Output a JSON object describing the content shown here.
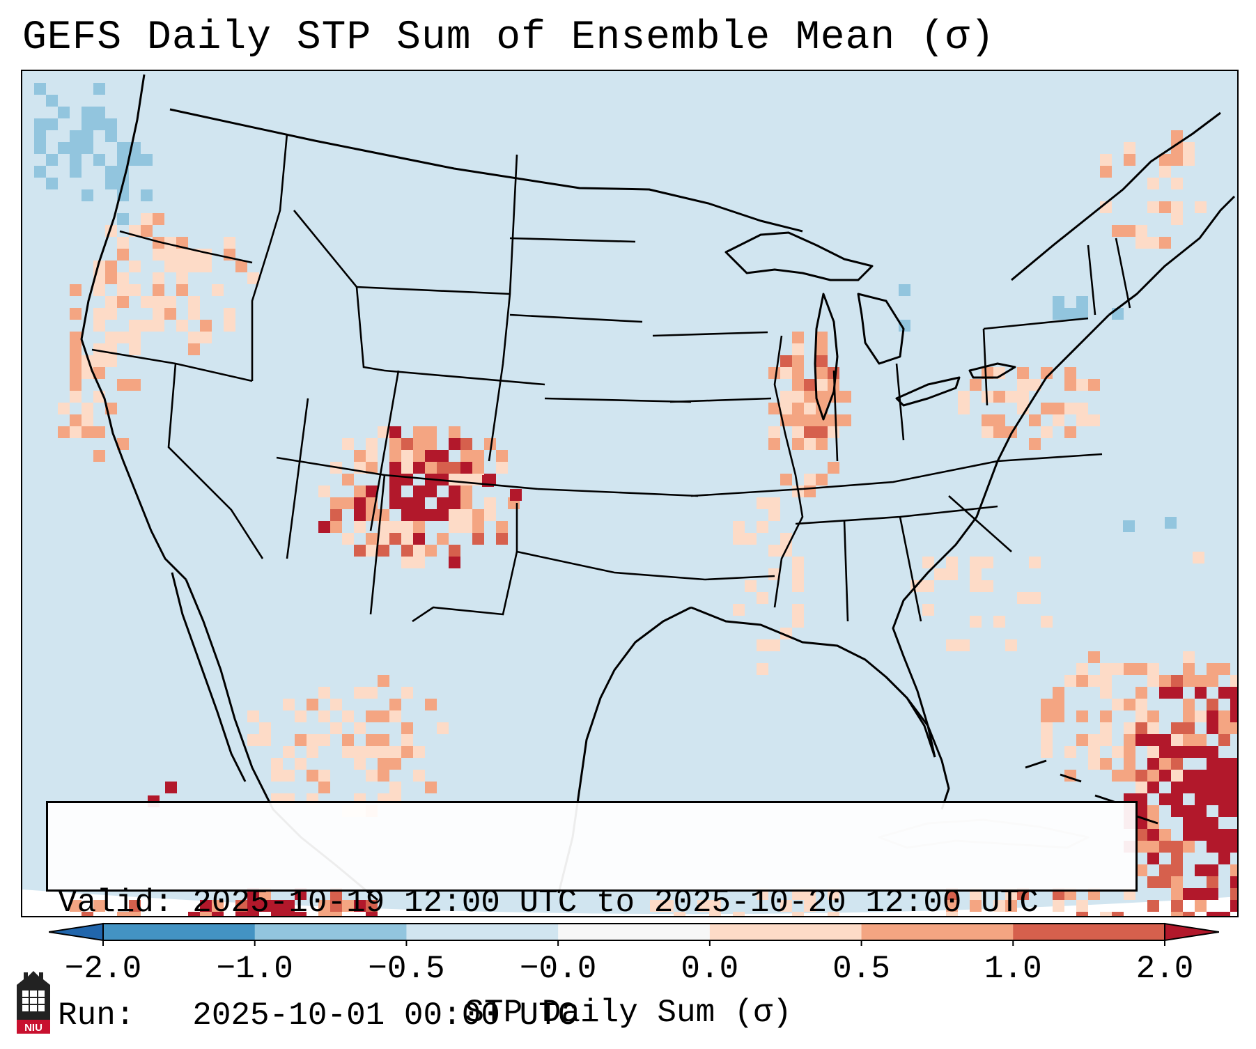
{
  "title": "GEFS Daily STP Sum of Ensemble Mean (σ)",
  "info": {
    "valid_line": "Valid: 2025-10-19 12:00 UTC to 2025-10-20 12:00 UTC",
    "run_line": "Run:   2025-10-01 00:00 UTC"
  },
  "colorbar": {
    "label": "STP Daily Sum (σ)",
    "ticks": [
      "−2.0",
      "−1.0",
      "−0.5",
      "−0.0",
      "0.0",
      "0.5",
      "1.0",
      "2.0"
    ],
    "colors": [
      "#2166ac",
      "#4393c3",
      "#92c5de",
      "#d1e5f0",
      "#f7f7f7",
      "#fddbc7",
      "#f4a582",
      "#d6604d",
      "#b2182b"
    ]
  },
  "logo": {
    "text": "NIU"
  },
  "map": {
    "projection": "Lambert Conformal CONUS",
    "background_color": "#d1e5f0",
    "anomaly_regions": [
      {
        "name": "southern-rockies",
        "level": "strong-positive"
      },
      {
        "name": "upper-midwest",
        "level": "moderate-positive"
      },
      {
        "name": "florida-bahamas",
        "level": "strong-positive"
      },
      {
        "name": "pacific-northwest",
        "level": "weak-positive"
      },
      {
        "name": "northeast",
        "level": "weak-positive"
      },
      {
        "name": "northeast-pacific",
        "level": "weak-negative"
      }
    ]
  }
}
